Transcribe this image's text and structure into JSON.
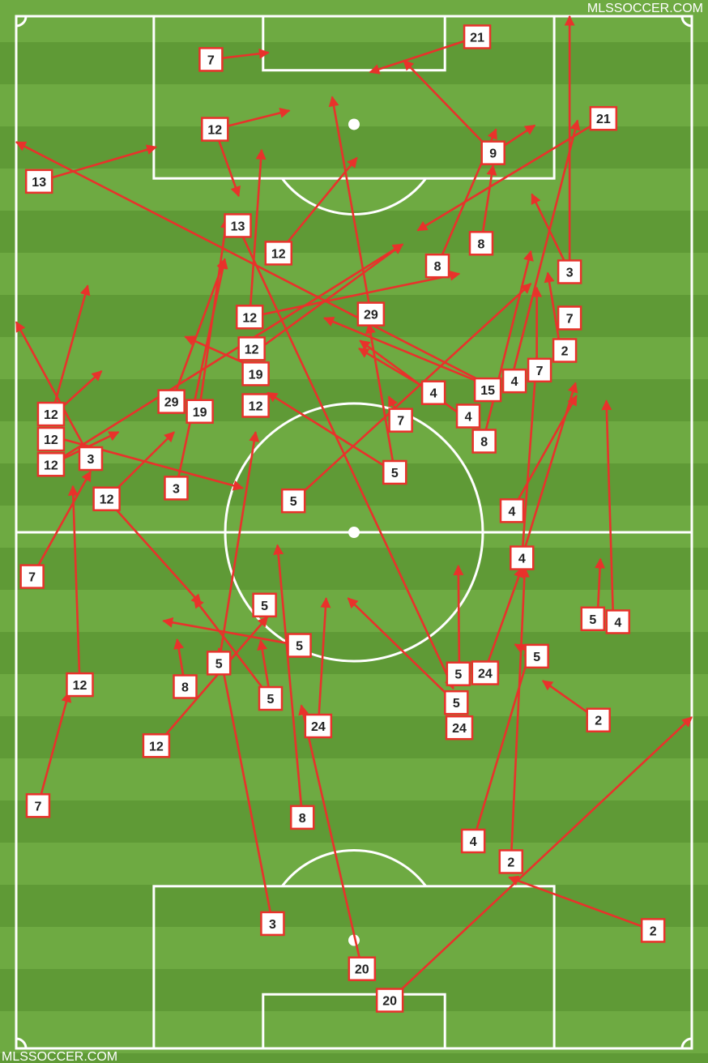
{
  "watermark": "MLSSOCCER.COM",
  "colors": {
    "grass_light": "#6eaa42",
    "grass_dark": "#5f9a36",
    "lines": "#ffffff",
    "pass": "#e8322b",
    "label_border": "#e8322b"
  },
  "chart_data": {
    "type": "pass-map",
    "units": "meters",
    "pitch": {
      "width": 68,
      "length": 105
    },
    "passes": [
      {
        "player": "7",
        "start": [
          19.6,
          4.4
        ],
        "end": [
          25.4,
          3.7
        ]
      },
      {
        "player": "21",
        "start": [
          46.4,
          2.1
        ],
        "end": [
          35.6,
          5.7
        ]
      },
      {
        "player": "12",
        "start": [
          20.0,
          11.5
        ],
        "end": [
          27.5,
          9.6
        ]
      },
      {
        "player": "13",
        "start": [
          2.3,
          16.8
        ],
        "end": [
          14.1,
          13.3
        ]
      },
      {
        "player": "9",
        "start": [
          48.0,
          13.9
        ],
        "end": [
          39.0,
          4.5
        ]
      },
      {
        "player": "9",
        "start": [
          48.0,
          13.9
        ],
        "end": [
          52.2,
          11.1
        ]
      },
      {
        "player": "21",
        "start": [
          59.1,
          10.4
        ],
        "end": [
          40.4,
          21.8
        ]
      },
      {
        "player": "3",
        "start": [
          55.7,
          26.0
        ],
        "end": [
          55.7,
          0
        ]
      },
      {
        "player": "3",
        "start": [
          55.7,
          26.0
        ],
        "end": [
          51.9,
          18.1
        ]
      },
      {
        "player": "8",
        "start": [
          46.8,
          23.1
        ],
        "end": [
          48.0,
          15.2
        ]
      },
      {
        "player": "8",
        "start": [
          42.4,
          25.4
        ],
        "end": [
          48.3,
          11.5
        ]
      },
      {
        "player": "12",
        "start": [
          20.0,
          11.5
        ],
        "end": [
          22.4,
          18.3
        ]
      },
      {
        "player": "13",
        "start": [
          22.3,
          21.3
        ],
        "end": [
          44.0,
          68.4
        ]
      },
      {
        "player": "12",
        "start": [
          26.4,
          24.1
        ],
        "end": [
          34.3,
          14.4
        ]
      },
      {
        "player": "12",
        "start": [
          23.5,
          30.6
        ],
        "end": [
          24.7,
          13.6
        ]
      },
      {
        "player": "12",
        "start": [
          23.5,
          30.6
        ],
        "end": [
          44.6,
          26.2
        ]
      },
      {
        "player": "12",
        "start": [
          23.7,
          34.4
        ],
        "end": [
          38.9,
          23.2
        ]
      },
      {
        "player": "29",
        "start": [
          35.7,
          30.3
        ],
        "end": [
          31.8,
          8.2
        ]
      },
      {
        "player": "5",
        "start": [
          38.1,
          46.4
        ],
        "end": [
          35.5,
          31.3
        ]
      },
      {
        "player": "15",
        "start": [
          48.5,
          38.0
        ],
        "end": [
          0,
          12.8
        ]
      },
      {
        "player": "15",
        "start": [
          48.5,
          38.0
        ],
        "end": [
          31.0,
          30.7
        ]
      },
      {
        "player": "4",
        "start": [
          42.0,
          38.3
        ],
        "end": [
          34.5,
          33.8
        ]
      },
      {
        "player": "4",
        "start": [
          45.5,
          41.1
        ],
        "end": [
          34.6,
          33.0
        ]
      },
      {
        "player": "8",
        "start": [
          47.1,
          42.8
        ],
        "end": [
          51.8,
          23.9
        ]
      },
      {
        "player": "4",
        "start": [
          49.8,
          37.1
        ],
        "end": [
          56.5,
          10.6
        ]
      },
      {
        "player": "7",
        "start": [
          52.4,
          36.0
        ],
        "end": [
          52.4,
          27.6
        ]
      },
      {
        "player": "2",
        "start": [
          54.8,
          34.0
        ],
        "end": [
          53.5,
          26.1
        ]
      },
      {
        "player": "7",
        "start": [
          55.7,
          30.7
        ],
        "end": null
      },
      {
        "player": "5",
        "start": [
          27.9,
          49.3
        ],
        "end": [
          51.8,
          27.2
        ]
      },
      {
        "player": "7",
        "start": [
          38.7,
          41.1
        ],
        "end": [
          37.5,
          38.7
        ]
      },
      {
        "player": "4",
        "start": [
          49.9,
          50.3
        ],
        "end": [
          56.4,
          38.6
        ]
      },
      {
        "player": "4",
        "start": [
          50.9,
          55.1
        ],
        "end": [
          52.4,
          34.6
        ]
      },
      {
        "player": "4",
        "start": [
          50.9,
          55.1
        ],
        "end": [
          56.3,
          37.3
        ]
      },
      {
        "player": "19",
        "start": [
          24.1,
          35.8
        ],
        "end": [
          17.0,
          32.6
        ]
      },
      {
        "player": "5",
        "start": [
          38.1,
          46.4
        ],
        "end": [
          25.3,
          38.3
        ]
      },
      {
        "player": "12",
        "start": [
          24.1,
          39.6
        ],
        "end": null
      },
      {
        "player": "29",
        "start": [
          15.7,
          39.2
        ],
        "end": [
          21.0,
          24.7
        ]
      },
      {
        "player": "19",
        "start": [
          18.4,
          40.2
        ],
        "end": [
          21.2,
          20.6
        ]
      },
      {
        "player": "3",
        "start": [
          16.1,
          48.0
        ],
        "end": [
          21.0,
          24.7
        ]
      },
      {
        "player": "12",
        "start": [
          3.5,
          40.8
        ],
        "end": [
          7.2,
          27.4
        ]
      },
      {
        "player": "12",
        "start": [
          3.5,
          40.8
        ],
        "end": [
          8.6,
          36.1
        ]
      },
      {
        "player": "12",
        "start": [
          3.5,
          45.6
        ],
        "end": [
          10.3,
          42.3
        ]
      },
      {
        "player": "12",
        "start": [
          3.5,
          45.6
        ],
        "end": [
          38.9,
          23.2
        ]
      },
      {
        "player": "3",
        "start": [
          7.5,
          45.0
        ],
        "end": [
          0,
          31.1
        ]
      },
      {
        "player": "12",
        "start": [
          3.5,
          42.7
        ],
        "end": [
          22.8,
          48.0
        ]
      },
      {
        "player": "12",
        "start": [
          9.1,
          49.1
        ],
        "end": [
          15.9,
          42.3
        ]
      },
      {
        "player": "12",
        "start": [
          9.1,
          49.1
        ],
        "end": [
          18.6,
          59.8
        ]
      },
      {
        "player": "7",
        "start": [
          1.6,
          57.0
        ],
        "end": [
          7.5,
          46.3
        ]
      },
      {
        "player": "12",
        "start": [
          6.4,
          68.0
        ],
        "end": [
          5.7,
          47.8
        ]
      },
      {
        "player": "7",
        "start": [
          2.2,
          80.3
        ],
        "end": [
          5.3,
          68.8
        ]
      },
      {
        "player": "12",
        "start": [
          14.1,
          74.2
        ],
        "end": [
          25.3,
          61.1
        ]
      },
      {
        "player": "5",
        "start": [
          25.0,
          59.9
        ],
        "end": null
      },
      {
        "player": "8",
        "start": [
          17.0,
          68.2
        ],
        "end": [
          16.2,
          63.4
        ]
      },
      {
        "player": "5",
        "start": [
          20.4,
          65.8
        ],
        "end": [
          24.1,
          42.3
        ]
      },
      {
        "player": "5",
        "start": [
          28.5,
          64.0
        ],
        "end": [
          14.8,
          61.5
        ]
      },
      {
        "player": "5",
        "start": [
          25.6,
          69.4
        ],
        "end": [
          17.9,
          59.2
        ]
      },
      {
        "player": "5",
        "start": [
          25.6,
          69.4
        ],
        "end": [
          24.6,
          63.5
        ]
      },
      {
        "player": "8",
        "start": [
          28.8,
          81.5
        ],
        "end": [
          26.3,
          53.8
        ]
      },
      {
        "player": "24",
        "start": [
          30.4,
          72.2
        ],
        "end": [
          31.2,
          59.2
        ]
      },
      {
        "player": "3",
        "start": [
          25.8,
          92.3
        ],
        "end": [
          20.4,
          64.3
        ]
      },
      {
        "player": "20",
        "start": [
          34.8,
          96.9
        ],
        "end": [
          28.7,
          70.1
        ]
      },
      {
        "player": "20",
        "start": [
          37.6,
          100.1
        ],
        "end": [
          68.0,
          71.3
        ]
      },
      {
        "player": "2",
        "start": [
          64.1,
          93.0
        ],
        "end": [
          49.6,
          87.6
        ]
      },
      {
        "player": "2",
        "start": [
          49.8,
          86.0
        ],
        "end": [
          51.2,
          56.1
        ]
      },
      {
        "player": "4",
        "start": [
          46.0,
          83.9
        ],
        "end": [
          51.8,
          64.3
        ]
      },
      {
        "player": "5",
        "start": [
          52.4,
          65.1
        ],
        "end": [
          50.2,
          63.9
        ]
      },
      {
        "player": "2",
        "start": [
          58.6,
          71.6
        ],
        "end": [
          53.0,
          67.6
        ]
      },
      {
        "player": "5",
        "start": [
          44.6,
          66.9
        ],
        "end": [
          44.5,
          55.9
        ]
      },
      {
        "player": "5",
        "start": [
          44.3,
          69.9
        ],
        "end": [
          33.4,
          59.2
        ]
      },
      {
        "player": "24",
        "start": [
          44.6,
          72.3
        ],
        "end": null
      },
      {
        "player": "24",
        "start": [
          47.1,
          66.8
        ],
        "end": [
          50.9,
          56.1
        ]
      },
      {
        "player": "5",
        "start": [
          58.5,
          61.3
        ],
        "end": [
          58.8,
          55.2
        ]
      },
      {
        "player": "4",
        "start": [
          60.1,
          61.6
        ],
        "end": [
          59.4,
          39.1
        ]
      }
    ]
  }
}
